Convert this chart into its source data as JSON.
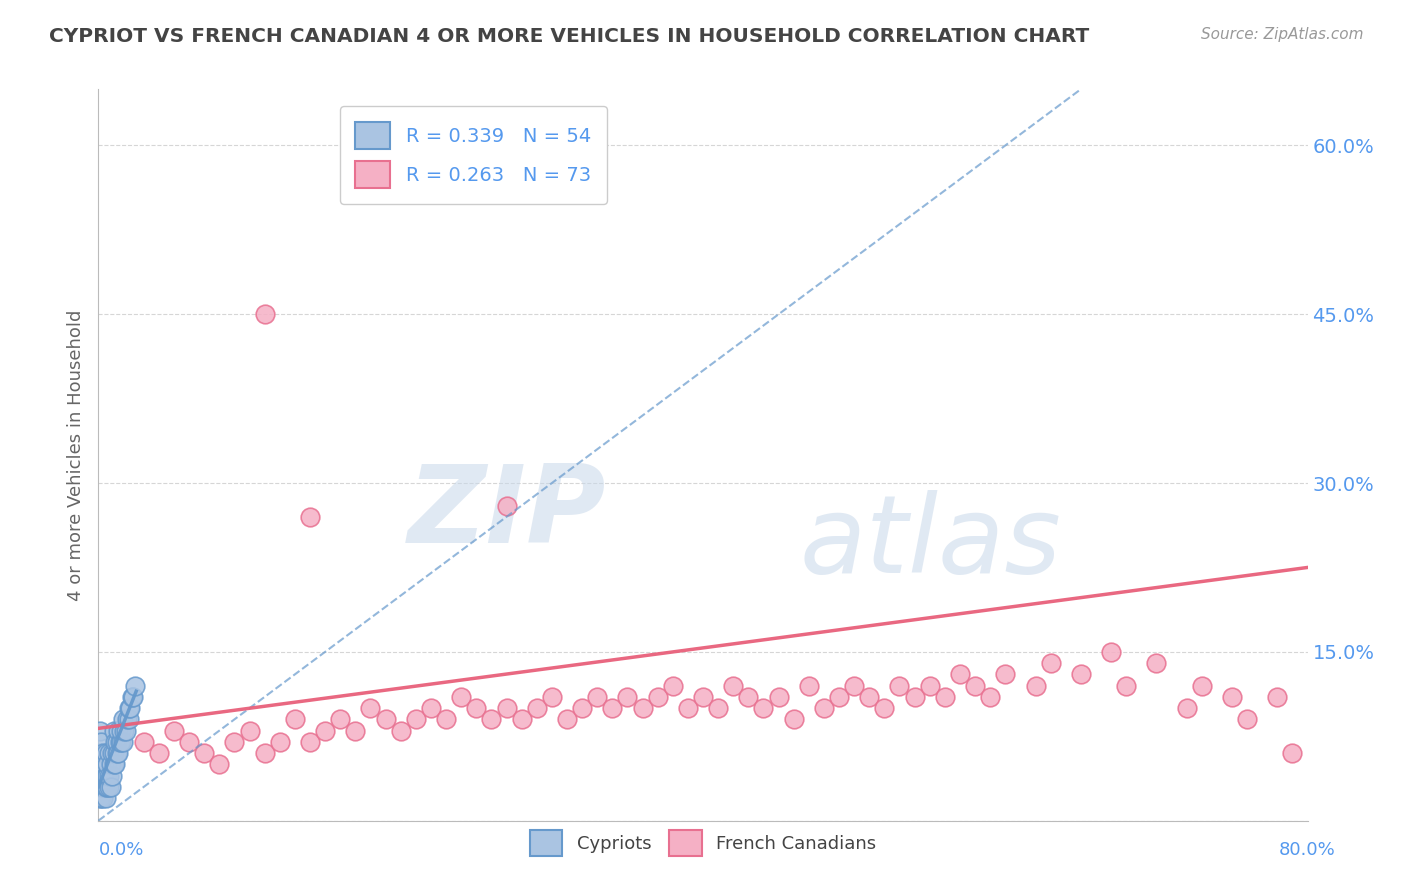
{
  "title": "CYPRIOT VS FRENCH CANADIAN 4 OR MORE VEHICLES IN HOUSEHOLD CORRELATION CHART",
  "source": "Source: ZipAtlas.com",
  "ylabel": "4 or more Vehicles in Household",
  "watermark_line1": "ZIP",
  "watermark_line2": "atlas",
  "cypriot_R": 0.339,
  "cypriot_N": 54,
  "french_R": 0.263,
  "french_N": 73,
  "xlim": [
    0.0,
    0.8
  ],
  "ylim": [
    0.0,
    0.65
  ],
  "yticks": [
    0.0,
    0.15,
    0.3,
    0.45,
    0.6
  ],
  "ytick_labels": [
    "0.0%",
    "15.0%",
    "30.0%",
    "45.0%",
    "60.0%"
  ],
  "xtick_labels": [
    "0.0%",
    "80.0%"
  ],
  "cypriot_color": "#aac4e2",
  "cypriot_edge": "#6699cc",
  "cypriot_line_color": "#6699cc",
  "french_color": "#f5b0c5",
  "french_edge": "#e87090",
  "french_line_color": "#e8607a",
  "background_color": "#ffffff",
  "title_color": "#444444",
  "axis_label_color": "#5599ee",
  "grid_color": "#cccccc",
  "cypriot_x": [
    0.001,
    0.001,
    0.001,
    0.001,
    0.001,
    0.001,
    0.002,
    0.002,
    0.002,
    0.002,
    0.003,
    0.003,
    0.003,
    0.003,
    0.004,
    0.004,
    0.004,
    0.005,
    0.005,
    0.005,
    0.005,
    0.006,
    0.006,
    0.006,
    0.007,
    0.007,
    0.007,
    0.008,
    0.008,
    0.009,
    0.009,
    0.01,
    0.01,
    0.01,
    0.011,
    0.011,
    0.012,
    0.012,
    0.013,
    0.013,
    0.014,
    0.015,
    0.015,
    0.016,
    0.016,
    0.017,
    0.018,
    0.019,
    0.02,
    0.02,
    0.021,
    0.022,
    0.023,
    0.024
  ],
  "cypriot_y": [
    0.02,
    0.03,
    0.04,
    0.05,
    0.06,
    0.08,
    0.02,
    0.03,
    0.05,
    0.07,
    0.02,
    0.03,
    0.04,
    0.06,
    0.03,
    0.04,
    0.05,
    0.02,
    0.03,
    0.04,
    0.06,
    0.03,
    0.04,
    0.05,
    0.03,
    0.04,
    0.06,
    0.03,
    0.05,
    0.04,
    0.06,
    0.05,
    0.06,
    0.08,
    0.05,
    0.07,
    0.06,
    0.07,
    0.06,
    0.08,
    0.07,
    0.07,
    0.08,
    0.07,
    0.09,
    0.08,
    0.08,
    0.09,
    0.09,
    0.1,
    0.1,
    0.11,
    0.11,
    0.12
  ],
  "french_x": [
    0.03,
    0.04,
    0.05,
    0.06,
    0.07,
    0.08,
    0.09,
    0.1,
    0.11,
    0.12,
    0.13,
    0.14,
    0.15,
    0.16,
    0.17,
    0.18,
    0.19,
    0.2,
    0.21,
    0.22,
    0.23,
    0.24,
    0.25,
    0.26,
    0.27,
    0.28,
    0.29,
    0.3,
    0.31,
    0.32,
    0.33,
    0.34,
    0.35,
    0.36,
    0.37,
    0.38,
    0.39,
    0.4,
    0.41,
    0.42,
    0.43,
    0.44,
    0.45,
    0.46,
    0.47,
    0.48,
    0.49,
    0.5,
    0.51,
    0.52,
    0.53,
    0.54,
    0.55,
    0.56,
    0.57,
    0.58,
    0.59,
    0.6,
    0.62,
    0.63,
    0.65,
    0.67,
    0.68,
    0.7,
    0.72,
    0.73,
    0.75,
    0.76,
    0.78,
    0.79,
    0.11,
    0.14,
    0.27
  ],
  "french_y": [
    0.07,
    0.06,
    0.08,
    0.07,
    0.06,
    0.05,
    0.07,
    0.08,
    0.06,
    0.07,
    0.09,
    0.07,
    0.08,
    0.09,
    0.08,
    0.1,
    0.09,
    0.08,
    0.09,
    0.1,
    0.09,
    0.11,
    0.1,
    0.09,
    0.1,
    0.09,
    0.1,
    0.11,
    0.09,
    0.1,
    0.11,
    0.1,
    0.11,
    0.1,
    0.11,
    0.12,
    0.1,
    0.11,
    0.1,
    0.12,
    0.11,
    0.1,
    0.11,
    0.09,
    0.12,
    0.1,
    0.11,
    0.12,
    0.11,
    0.1,
    0.12,
    0.11,
    0.12,
    0.11,
    0.13,
    0.12,
    0.11,
    0.13,
    0.12,
    0.14,
    0.13,
    0.15,
    0.12,
    0.14,
    0.1,
    0.12,
    0.11,
    0.09,
    0.11,
    0.06,
    0.45,
    0.27,
    0.28
  ],
  "diag_line_x": [
    0.0,
    0.65
  ],
  "diag_line_y": [
    0.0,
    0.65
  ],
  "french_trendline_x": [
    0.0,
    0.8
  ],
  "french_trendline_y": [
    0.082,
    0.225
  ],
  "cypriot_trendline_x": [
    0.0,
    0.025
  ],
  "cypriot_trendline_y": [
    0.03,
    0.115
  ]
}
